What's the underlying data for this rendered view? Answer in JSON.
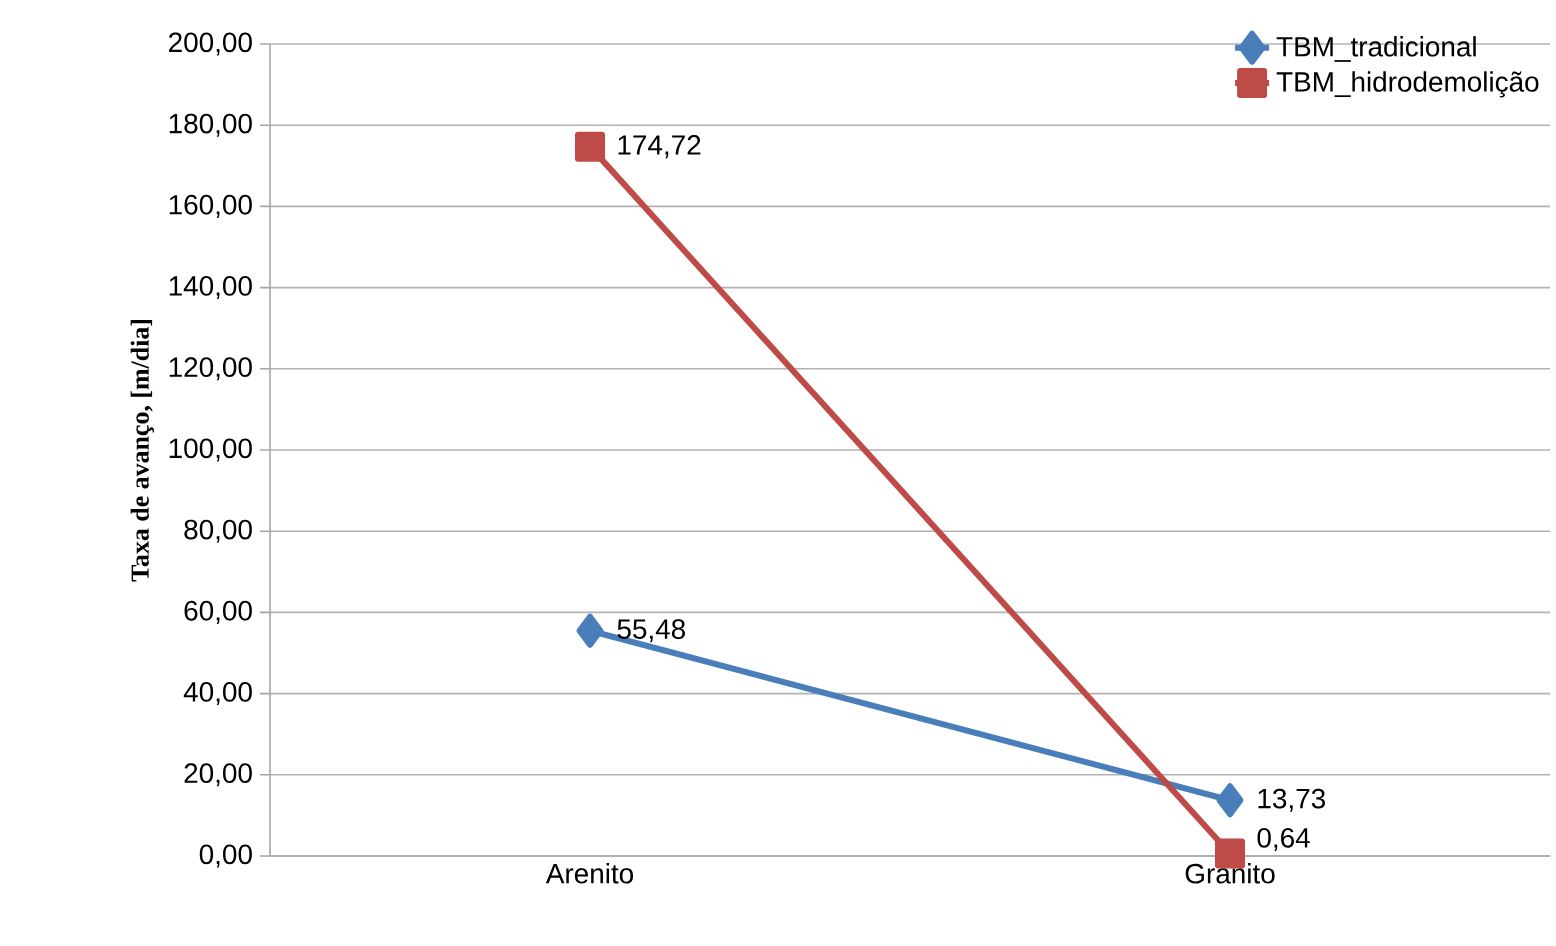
{
  "chart_data": {
    "type": "line",
    "ylabel": "Taxa de avanço, [m/dia]",
    "categories": [
      "Arenito",
      "Granito"
    ],
    "series": [
      {
        "name": "TBM_tradicional",
        "color": "#4a7ebb",
        "values": [
          55.48,
          13.73
        ],
        "marker": "diamond",
        "value_labels": [
          "55,48",
          "13,73"
        ]
      },
      {
        "name": "TBM_hidrodemolição",
        "color": "#be4b48",
        "values": [
          174.72,
          0.64
        ],
        "marker": "square",
        "value_labels": [
          "174,72",
          "0,64"
        ]
      }
    ],
    "ylim": [
      0,
      200
    ],
    "yticks": [
      {
        "value": 0,
        "label": "0,00"
      },
      {
        "value": 20,
        "label": "20,00"
      },
      {
        "value": 40,
        "label": "40,00"
      },
      {
        "value": 60,
        "label": "60,00"
      },
      {
        "value": 80,
        "label": "80,00"
      },
      {
        "value": 100,
        "label": "100,00"
      },
      {
        "value": 120,
        "label": "120,00"
      },
      {
        "value": 140,
        "label": "140,00"
      },
      {
        "value": 160,
        "label": "160,00"
      },
      {
        "value": 180,
        "label": "180,00"
      },
      {
        "value": 200,
        "label": "200,00"
      }
    ],
    "grid": "y",
    "legend": "top right",
    "line_style": "solid"
  }
}
